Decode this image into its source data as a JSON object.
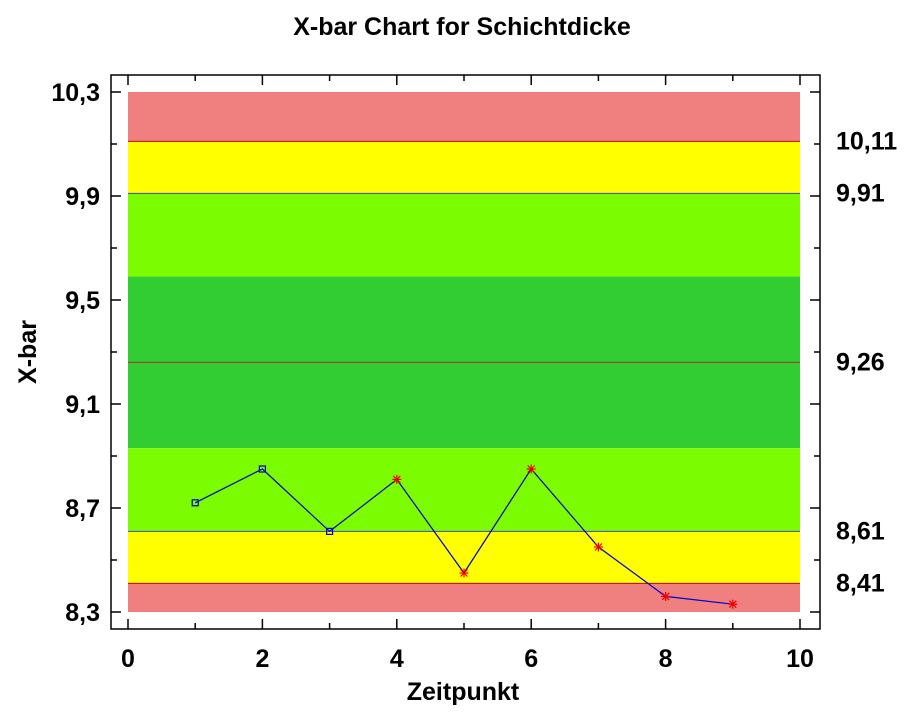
{
  "chart_data": {
    "type": "line",
    "title": "X-bar Chart for Schichtdicke",
    "xlabel": "Zeitpunkt",
    "ylabel": "X-bar",
    "xlim": [
      0,
      10
    ],
    "ylim": [
      8.3,
      10.3
    ],
    "x_ticks": [
      0,
      2,
      4,
      6,
      8,
      10
    ],
    "x_tick_labels": [
      "0",
      "2",
      "4",
      "6",
      "8",
      "10"
    ],
    "y_ticks": [
      8.3,
      8.7,
      9.1,
      9.5,
      9.9,
      10.3
    ],
    "y_tick_labels": [
      "8,3",
      "8,7",
      "9,1",
      "9,5",
      "9,9",
      "10,3"
    ],
    "bands": [
      {
        "from": 10.11,
        "to": 10.3,
        "color": "#f08080"
      },
      {
        "from": 9.91,
        "to": 10.11,
        "color": "#ffff00"
      },
      {
        "from": 9.59,
        "to": 9.91,
        "color": "#7cfc00"
      },
      {
        "from": 8.93,
        "to": 9.59,
        "color": "#32cd32"
      },
      {
        "from": 8.61,
        "to": 8.93,
        "color": "#7cfc00"
      },
      {
        "from": 8.41,
        "to": 8.61,
        "color": "#ffff00"
      },
      {
        "from": 8.3,
        "to": 8.41,
        "color": "#f08080"
      }
    ],
    "limit_lines": [
      {
        "value": 10.11,
        "label": "10,11",
        "color": "#cc0000"
      },
      {
        "value": 9.91,
        "label": "9,91",
        "color": "#4444cc"
      },
      {
        "value": 9.26,
        "label": "9,26",
        "color": "#aa3333"
      },
      {
        "value": 8.61,
        "label": "8,61",
        "color": "#4444cc"
      },
      {
        "value": 8.41,
        "label": "8,41",
        "color": "#cc0000"
      }
    ],
    "series": [
      {
        "color": "#0000cc",
        "x": [
          1,
          2,
          3,
          4,
          5,
          6,
          7,
          8,
          9
        ],
        "y": [
          8.72,
          8.85,
          8.61,
          8.81,
          8.45,
          8.85,
          8.55,
          8.36,
          8.33
        ],
        "markers": [
          "square",
          "square",
          "square",
          "x",
          "x",
          "x",
          "x",
          "x",
          "x"
        ]
      }
    ],
    "grid": false
  }
}
